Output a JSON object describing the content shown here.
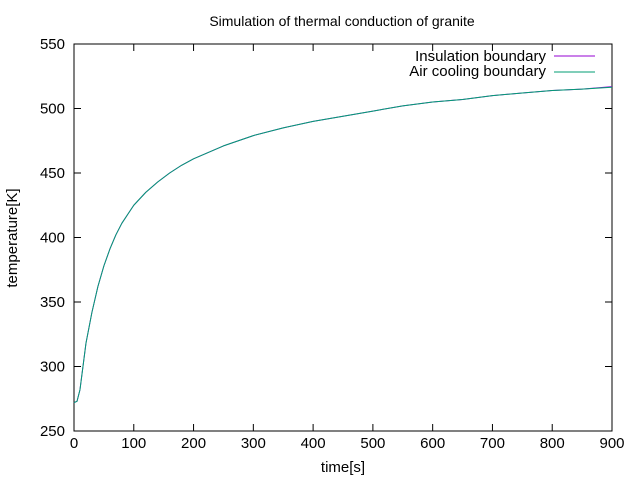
{
  "chart_data": {
    "type": "line",
    "title": "Simulation of thermal conduction of granite",
    "xlabel": "time[s]",
    "ylabel": "temperature[K]",
    "xlim": [
      0,
      900
    ],
    "ylim": [
      250,
      550
    ],
    "xticks": [
      0,
      100,
      200,
      300,
      400,
      500,
      600,
      700,
      800,
      900
    ],
    "yticks": [
      250,
      300,
      350,
      400,
      450,
      500,
      550
    ],
    "grid": false,
    "legend_position": "top-right",
    "series": [
      {
        "name": "Insulation boundary",
        "color": "#9400d3",
        "x": [
          0,
          5,
          10,
          15,
          20,
          30,
          40,
          50,
          60,
          70,
          80,
          90,
          100,
          120,
          140,
          160,
          180,
          200,
          250,
          300,
          350,
          400,
          450,
          500,
          550,
          600,
          650,
          700,
          750,
          800,
          850,
          900
        ],
        "y": [
          272,
          273,
          282,
          300,
          318,
          342,
          362,
          378,
          391,
          402,
          411,
          418,
          425,
          435,
          443,
          450,
          456,
          461,
          471,
          479,
          485,
          490,
          494,
          498,
          502,
          505,
          507,
          510,
          512,
          514,
          515,
          517
        ]
      },
      {
        "name": "Air cooling boundary",
        "color": "#009e73",
        "x": [
          0,
          5,
          10,
          15,
          20,
          30,
          40,
          50,
          60,
          70,
          80,
          90,
          100,
          120,
          140,
          160,
          180,
          200,
          250,
          300,
          350,
          400,
          450,
          500,
          550,
          600,
          650,
          700,
          750,
          800,
          850,
          900
        ],
        "y": [
          272,
          273,
          282,
          300,
          318,
          342,
          362,
          378,
          391,
          402,
          411,
          418,
          425,
          435,
          443,
          450,
          456,
          461,
          471,
          479,
          485,
          490,
          494,
          498,
          502,
          505,
          507,
          510,
          512,
          514,
          515,
          516.5
        ]
      }
    ]
  }
}
